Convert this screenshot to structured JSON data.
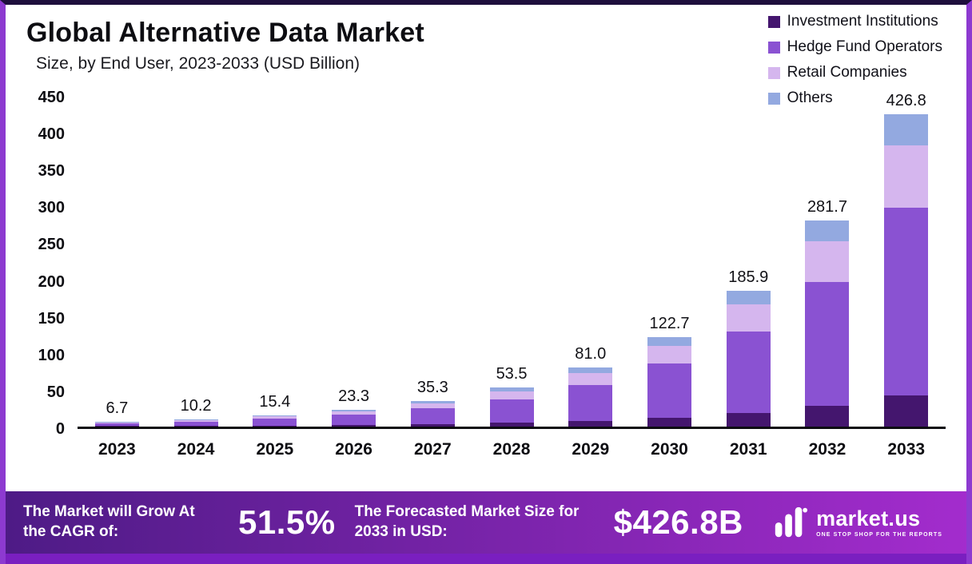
{
  "header": {
    "title": "Global Alternative Data Market",
    "subtitle": "Size, by End User, 2023-2033 (USD Billion)"
  },
  "chart_data": {
    "type": "bar",
    "stacked": true,
    "title": "Global Alternative Data Market",
    "subtitle": "Size, by End User, 2023-2033 (USD Billion)",
    "unit": "USD Billion",
    "categories": [
      "2023",
      "2024",
      "2025",
      "2026",
      "2027",
      "2028",
      "2029",
      "2030",
      "2031",
      "2032",
      "2033"
    ],
    "totals": [
      6.7,
      10.2,
      15.4,
      23.3,
      35.3,
      53.5,
      81.0,
      122.7,
      185.9,
      281.7,
      426.8
    ],
    "total_labels": [
      "6.7",
      "10.2",
      "15.4",
      "23.3",
      "35.3",
      "53.5",
      "81.0",
      "122.7",
      "185.9",
      "281.7",
      "426.8"
    ],
    "ylim": [
      0,
      450
    ],
    "yticks": [
      0,
      50,
      100,
      150,
      200,
      250,
      300,
      350,
      400,
      450
    ],
    "grid": false,
    "legend_position": "top-right",
    "series": [
      {
        "name": "Investment Institutions",
        "color": "#44166e",
        "values": [
          0.7,
          1.0,
          1.5,
          2.3,
          3.5,
          5.4,
          8.1,
          12.3,
          18.6,
          28.2,
          42.7
        ]
      },
      {
        "name": "Hedge Fund Operators",
        "color": "#8a52d2",
        "values": [
          4.0,
          6.1,
          9.3,
          14.0,
          21.2,
          32.1,
          48.6,
          73.6,
          111.5,
          169.0,
          256.1
        ]
      },
      {
        "name": "Retail Companies",
        "color": "#d5b6ee",
        "values": [
          1.3,
          2.0,
          3.1,
          4.7,
          7.1,
          10.7,
          16.2,
          24.5,
          37.2,
          56.3,
          85.4
        ]
      },
      {
        "name": "Others",
        "color": "#93a9e0",
        "values": [
          0.7,
          1.1,
          1.5,
          2.3,
          3.5,
          5.3,
          8.1,
          12.3,
          18.6,
          28.2,
          42.6
        ]
      }
    ]
  },
  "banner": {
    "cagr_label": "The Market will Grow At the CAGR of:",
    "cagr_value": "51.5%",
    "forecast_label": "The Forecasted Market Size for 2033 in USD:",
    "forecast_value": "$426.8B",
    "logo_text": "market.us",
    "logo_tagline": "ONE STOP SHOP FOR THE REPORTS"
  },
  "colors": {
    "banner_gradient_start": "#4e1b86",
    "banner_gradient_end": "#a32ccd",
    "border_top": "#1e0f3c",
    "border_sides": "#8d3ad0",
    "bottom_strip": "#7a1fc0"
  }
}
